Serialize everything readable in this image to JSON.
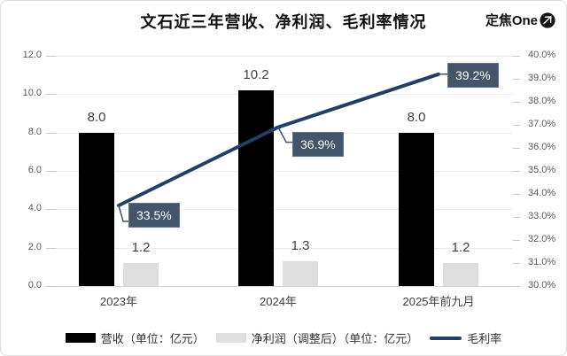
{
  "header": {
    "title": "文石近三年营收、净利润、毛利率情况",
    "brand": "定焦One"
  },
  "chart_data": {
    "type": "bar+line combo",
    "categories": [
      "2023年",
      "2024年",
      "2025年前九月"
    ],
    "series": [
      {
        "name": "营收（单位：亿元）",
        "type": "bar",
        "axis": "left",
        "color": "#000000",
        "values": [
          8.0,
          10.2,
          8.0
        ],
        "labels": [
          "8.0",
          "10.2",
          "8.0"
        ]
      },
      {
        "name": "净利润（调整后）（单位：亿元）",
        "type": "bar",
        "axis": "left",
        "color": "#dedede",
        "values": [
          1.2,
          1.3,
          1.2
        ],
        "labels": [
          "1.2",
          "1.3",
          "1.2"
        ]
      },
      {
        "name": "毛利率",
        "type": "line",
        "axis": "right",
        "color": "#253e63",
        "values": [
          33.5,
          36.9,
          39.2
        ],
        "labels": [
          "33.5%",
          "36.9%",
          "39.2%"
        ]
      }
    ],
    "left_axis": {
      "min": 0,
      "max": 12,
      "step": 2,
      "ticks": [
        "12.0",
        "10.0",
        "8.0",
        "6.0",
        "4.0",
        "2.0",
        "0.0"
      ]
    },
    "right_axis": {
      "min": 30,
      "max": 40,
      "step": 1,
      "ticks": [
        "40.0%",
        "39.0%",
        "38.0%",
        "37.0%",
        "36.0%",
        "35.0%",
        "34.0%",
        "33.0%",
        "32.0%",
        "31.0%",
        "30.0%"
      ]
    },
    "grid": true,
    "legend_position": "bottom"
  },
  "legend": {
    "items": [
      {
        "label": "营收（单位：亿元）",
        "swatch": "bar",
        "color": "#000000"
      },
      {
        "label": "净利润（调整后）（单位：亿元）",
        "swatch": "bar",
        "color": "#dedede"
      },
      {
        "label": "毛利率",
        "swatch": "line",
        "color": "#253e63"
      }
    ]
  },
  "colors": {
    "revenue_bar": "#000000",
    "profit_bar": "#dedede",
    "margin_line": "#253e63",
    "callout_bg": "#44546a",
    "grid": "#ebebeb",
    "axis_text": "#595959",
    "value_text": "#3f3f3f"
  }
}
